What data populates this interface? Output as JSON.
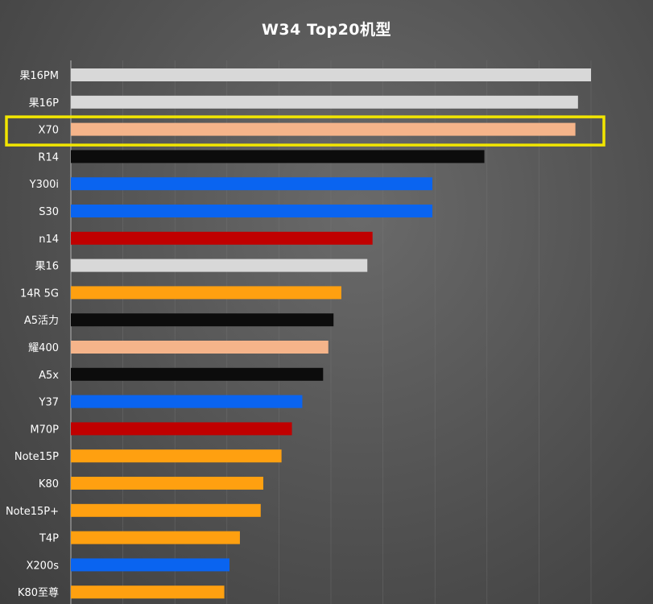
{
  "chart_data": {
    "type": "bar",
    "orientation": "horizontal",
    "title": "W34 Top20机型",
    "xlabel": "",
    "ylabel": "",
    "xlim": [
      0,
      100
    ],
    "grid": true,
    "legend": "none",
    "highlighted_category": "X70",
    "highlight_color": "#f2e600",
    "categories": [
      "果16PM",
      "果16P",
      "X70",
      "R14",
      "Y300i",
      "S30",
      "n14",
      "果16",
      "14R 5G",
      "A5活力",
      "耀400",
      "A5x",
      "Y37",
      "M70P",
      "Note15P",
      "K80",
      "Note15P+",
      "T4P",
      "X200s",
      "K80至尊"
    ],
    "values": [
      100,
      97.5,
      97,
      79.5,
      69.5,
      69.5,
      58,
      57,
      52,
      50.5,
      49.5,
      48.5,
      44.5,
      42.5,
      40.5,
      37,
      36.5,
      32.5,
      30.5,
      29.5
    ],
    "colors": [
      "#d8d8d8",
      "#d8d8d8",
      "#f5b48a",
      "#0c0c0c",
      "#0a64f0",
      "#0a64f0",
      "#c00000",
      "#d8d8d8",
      "#ffa010",
      "#0c0c0c",
      "#f5b48a",
      "#0c0c0c",
      "#0a64f0",
      "#c00000",
      "#ffa010",
      "#ffa010",
      "#ffa010",
      "#ffa010",
      "#0a64f0",
      "#ffa010"
    ]
  }
}
